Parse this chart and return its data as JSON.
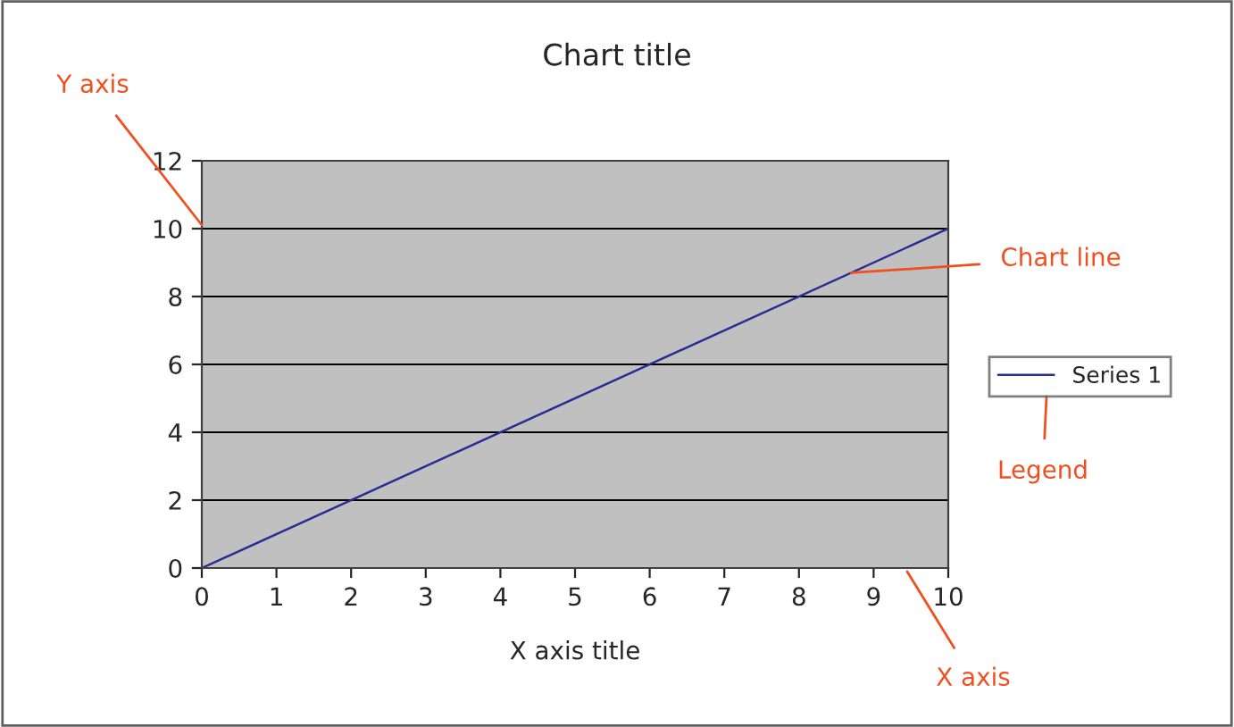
{
  "chart_data": {
    "type": "line",
    "title": "Chart title",
    "xlabel": "X axis title",
    "x": [
      0,
      10
    ],
    "series": [
      {
        "name": "Series 1",
        "color": "#2b2b96",
        "values": [
          0,
          10
        ]
      }
    ],
    "xlim": [
      0,
      10
    ],
    "xticks": [
      0,
      1,
      2,
      3,
      4,
      5,
      6,
      7,
      8,
      9,
      10
    ],
    "ylim": [
      0,
      12
    ],
    "yticks": [
      0,
      2,
      4,
      6,
      8,
      10,
      12
    ],
    "grid": "y",
    "legend": "right",
    "marker": "none",
    "line_style": "solid",
    "annotations": [
      "Y axis",
      {
        "text": "Chart line",
        "x": 8.7,
        "y": 8.7
      },
      "Legend",
      "X axis"
    ]
  }
}
